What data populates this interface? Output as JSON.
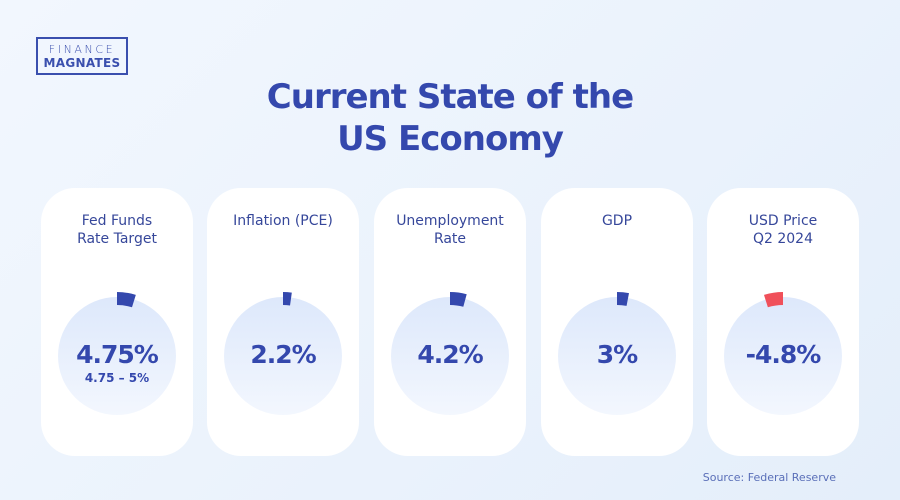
{
  "logo": {
    "line1": "FINANCE",
    "line2": "MAGNATES"
  },
  "title": {
    "line1": "Current State of the",
    "line2": "US Economy"
  },
  "colors": {
    "primary": "#3448ad",
    "negative": "#f0505a",
    "circle": "#e3ecfb"
  },
  "cards": [
    {
      "label1": "Fed Funds",
      "label2": "Rate Target",
      "value": "4.75%",
      "sub": "4.75 – 5%",
      "percent": 4.75
    },
    {
      "label1": "Inflation (PCE)",
      "label2": "",
      "value": "2.2%",
      "sub": "",
      "percent": 2.2
    },
    {
      "label1": "Unemployment",
      "label2": "Rate",
      "value": "4.2%",
      "sub": "",
      "percent": 4.2
    },
    {
      "label1": "GDP",
      "label2": "",
      "value": "3%",
      "sub": "",
      "percent": 3
    },
    {
      "label1": "USD Price",
      "label2": "Q2 2024",
      "value": "-4.8%",
      "sub": "",
      "percent": -4.8
    }
  ],
  "source": "Source: Federal Reserve"
}
